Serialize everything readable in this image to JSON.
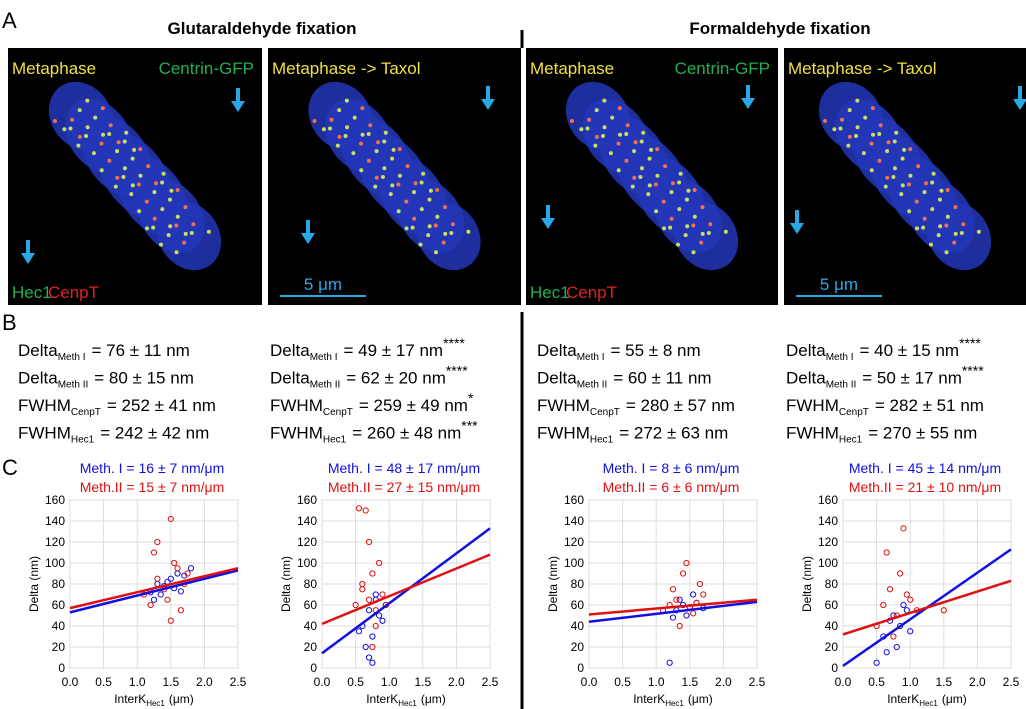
{
  "figure": {
    "panel_labels": [
      "A",
      "B",
      "C"
    ],
    "headings": [
      "Glutaraldehyde fixation",
      "Formaldehyde fixation"
    ],
    "images": [
      {
        "top_left": "Metaphase",
        "top_right": "Centrin-GFP",
        "bottom_left": "Hec1",
        "bottom_right": "CenpT"
      },
      {
        "top_left": "Metaphase -> Taxol",
        "scale_bar": "5 μm"
      },
      {
        "top_left": "Metaphase",
        "top_right": "Centrin-GFP",
        "bottom_left": "Hec1",
        "bottom_right": "CenpT"
      },
      {
        "top_left": "Metaphase -> Taxol",
        "scale_bar": "5 μm"
      }
    ]
  },
  "stats": [
    [
      {
        "main": "Delta",
        "sub": "Meth I",
        "rest": "= 76 ± 11 nm"
      },
      {
        "main": "Delta",
        "sub": "Meth II",
        "rest": "= 80 ± 15 nm"
      },
      {
        "main": "FWHM",
        "sub": "CenpT",
        "rest": "= 252 ± 41 nm"
      },
      {
        "main": "FWHM",
        "sub": "Hec1",
        "rest": "= 242 ± 42 nm"
      }
    ],
    [
      {
        "main": "Delta",
        "sub": "Meth I",
        "rest": "= 49 ± 17 nm",
        "sup": "****"
      },
      {
        "main": "Delta",
        "sub": "Meth II",
        "rest": "= 62 ± 20 nm",
        "sup": "****"
      },
      {
        "main": "FWHM",
        "sub": "CenpT",
        "rest": "= 259 ± 49 nm",
        "sup": "*"
      },
      {
        "main": "FWHM",
        "sub": "Hec1",
        "rest": "= 260 ± 48 nm",
        "sup": "***"
      }
    ],
    [
      {
        "main": "Delta",
        "sub": "Meth I",
        "rest": "= 55 ± 8 nm"
      },
      {
        "main": "Delta",
        "sub": "Meth II",
        "rest": "= 60 ± 11 nm"
      },
      {
        "main": "FWHM",
        "sub": "CenpT",
        "rest": "= 280 ± 57 nm"
      },
      {
        "main": "FWHM",
        "sub": "Hec1",
        "rest": "= 272 ± 63 nm"
      }
    ],
    [
      {
        "main": "Delta",
        "sub": "Meth I",
        "rest": "= 40 ± 15 nm",
        "sup": "****"
      },
      {
        "main": "Delta",
        "sub": "Meth II",
        "rest": "= 50 ± 17 nm",
        "sup": "****"
      },
      {
        "main": "FWHM",
        "sub": "CenpT",
        "rest": "= 282 ± 51 nm"
      },
      {
        "main": "FWHM",
        "sub": "Hec1",
        "rest": "= 270 ± 55 nm"
      }
    ]
  ],
  "chart_data": [
    {
      "type": "scatter",
      "ylabel": "Delta (nm)",
      "xlabel": {
        "text": "InterK",
        "sub": "Hec1",
        "unit": "(μm)"
      },
      "xlim": [
        0,
        2.5
      ],
      "ylim": [
        0,
        160
      ],
      "grid": true,
      "xticks": [
        {
          "value": 0,
          "label": "0.0"
        },
        {
          "value": 0.5,
          "label": "0.5"
        },
        {
          "value": 1,
          "label": "1.0"
        },
        {
          "value": 1.5,
          "label": "1.5"
        },
        {
          "value": 2,
          "label": "2.0"
        },
        {
          "value": 2.5,
          "label": "2.5"
        }
      ],
      "yticks": [
        0,
        20,
        40,
        60,
        80,
        100,
        120,
        140,
        160
      ],
      "series": [
        {
          "name": "Meth. I = 16 ± 7 nm/μm",
          "color": "#1010e0",
          "x": [
            1.2,
            1.3,
            1.4,
            1.5,
            1.6,
            1.35,
            1.45,
            1.7,
            1.25,
            1.55,
            1.8,
            1.65
          ],
          "values": [
            72,
            80,
            78,
            85,
            90,
            70,
            82,
            88,
            65,
            76,
            95,
            73
          ],
          "fit": [
            53,
            93
          ]
        },
        {
          "name": "Meth.II = 15 ± 7 nm/μm",
          "color": "#e01010",
          "x": [
            1.1,
            1.2,
            1.3,
            1.4,
            1.5,
            1.6,
            1.7,
            1.3,
            1.45,
            1.55,
            1.65,
            1.75,
            1.25,
            1.5
          ],
          "values": [
            70,
            60,
            85,
            75,
            142,
            95,
            80,
            120,
            65,
            100,
            55,
            90,
            110,
            45
          ],
          "fit": [
            57,
            95
          ]
        }
      ]
    },
    {
      "type": "scatter",
      "ylabel": "Delta (nm)",
      "xlabel": {
        "text": "InterK",
        "sub": "Hec1",
        "unit": "(μm)"
      },
      "xlim": [
        0,
        2.5
      ],
      "ylim": [
        0,
        160
      ],
      "grid": true,
      "xticks": [
        {
          "value": 0,
          "label": "0.0"
        },
        {
          "value": 0.5,
          "label": "0.5"
        },
        {
          "value": 1,
          "label": "1.0"
        },
        {
          "value": 1.5,
          "label": "1.5"
        },
        {
          "value": 2,
          "label": "2.0"
        },
        {
          "value": 2.5,
          "label": "2.5"
        }
      ],
      "yticks": [
        0,
        20,
        40,
        60,
        80,
        100,
        120,
        140,
        160
      ],
      "series": [
        {
          "name": "Meth. I = 48 ± 17 nm/μm",
          "color": "#1010e0",
          "x": [
            0.6,
            0.7,
            0.75,
            0.8,
            0.85,
            0.65,
            0.9,
            0.7,
            0.8,
            0.55,
            0.95,
            0.75
          ],
          "values": [
            40,
            55,
            30,
            65,
            50,
            20,
            45,
            10,
            70,
            35,
            60,
            5
          ],
          "fit": [
            14,
            133
          ]
        },
        {
          "name": "Meth.II = 27 ± 15 nm/μm",
          "color": "#e01010",
          "x": [
            0.5,
            0.6,
            0.65,
            0.7,
            0.75,
            0.8,
            0.85,
            0.9,
            0.7,
            0.8,
            0.6,
            0.95,
            0.75,
            0.55
          ],
          "values": [
            60,
            75,
            150,
            65,
            90,
            55,
            100,
            70,
            120,
            40,
            80,
            60,
            20,
            152
          ],
          "fit": [
            42,
            108
          ]
        }
      ]
    },
    {
      "type": "scatter",
      "ylabel": "Delta (nm)",
      "xlabel": {
        "text": "InterK",
        "sub": "Hec1",
        "unit": "(μm)"
      },
      "xlim": [
        0,
        2.5
      ],
      "ylim": [
        0,
        160
      ],
      "grid": true,
      "xticks": [
        {
          "value": 0,
          "label": "0.0"
        },
        {
          "value": 0.5,
          "label": "0.5"
        },
        {
          "value": 1,
          "label": "1.0"
        },
        {
          "value": 1.5,
          "label": "1.5"
        },
        {
          "value": 2,
          "label": "2.0"
        },
        {
          "value": 2.5,
          "label": "2.5"
        }
      ],
      "yticks": [
        0,
        20,
        40,
        60,
        80,
        100,
        120,
        140,
        160
      ],
      "series": [
        {
          "name": "Meth. I = 8 ± 6 nm/μm",
          "color": "#1010e0",
          "x": [
            1.2,
            1.3,
            1.4,
            1.5,
            1.6,
            1.45,
            1.35,
            1.7,
            1.25,
            1.55
          ],
          "values": [
            5,
            55,
            60,
            58,
            62,
            50,
            65,
            57,
            48,
            70
          ],
          "fit": [
            44,
            63
          ]
        },
        {
          "name": "Meth.II = 6 ± 6 nm/μm",
          "color": "#e01010",
          "x": [
            1.1,
            1.2,
            1.3,
            1.4,
            1.5,
            1.6,
            1.7,
            1.35,
            1.45,
            1.55,
            1.25,
            1.65
          ],
          "values": [
            55,
            60,
            65,
            90,
            58,
            62,
            70,
            40,
            100,
            52,
            75,
            80
          ],
          "fit": [
            51,
            65
          ]
        }
      ]
    },
    {
      "type": "scatter",
      "ylabel": "Delta (nm)",
      "xlabel": {
        "text": "InterK",
        "sub": "Hec1",
        "unit": "(μm)"
      },
      "xlim": [
        0,
        2.5
      ],
      "ylim": [
        0,
        160
      ],
      "grid": true,
      "xticks": [
        {
          "value": 0,
          "label": "0.0"
        },
        {
          "value": 0.5,
          "label": "0.5"
        },
        {
          "value": 1,
          "label": "1.0"
        },
        {
          "value": 1.5,
          "label": "1.5"
        },
        {
          "value": 2,
          "label": "2.0"
        },
        {
          "value": 2.5,
          "label": "2.5"
        }
      ],
      "yticks": [
        0,
        20,
        40,
        60,
        80,
        100,
        120,
        140,
        160
      ],
      "series": [
        {
          "name": "Meth. I = 45 ± 14 nm/μm",
          "color": "#1010e0",
          "x": [
            0.5,
            0.6,
            0.7,
            0.8,
            0.9,
            0.75,
            0.85,
            0.95,
            0.65,
            1.0
          ],
          "values": [
            5,
            30,
            45,
            20,
            60,
            50,
            40,
            55,
            15,
            35
          ],
          "fit": [
            2,
            113
          ]
        },
        {
          "name": "Meth.II = 21 ± 10 nm/μm",
          "color": "#e01010",
          "x": [
            0.5,
            0.6,
            0.7,
            0.8,
            0.9,
            1.0,
            1.1,
            0.85,
            0.95,
            0.75,
            1.5,
            0.65
          ],
          "values": [
            40,
            60,
            75,
            50,
            133,
            65,
            55,
            90,
            70,
            30,
            55,
            110
          ],
          "fit": [
            32,
            83
          ]
        }
      ]
    }
  ]
}
